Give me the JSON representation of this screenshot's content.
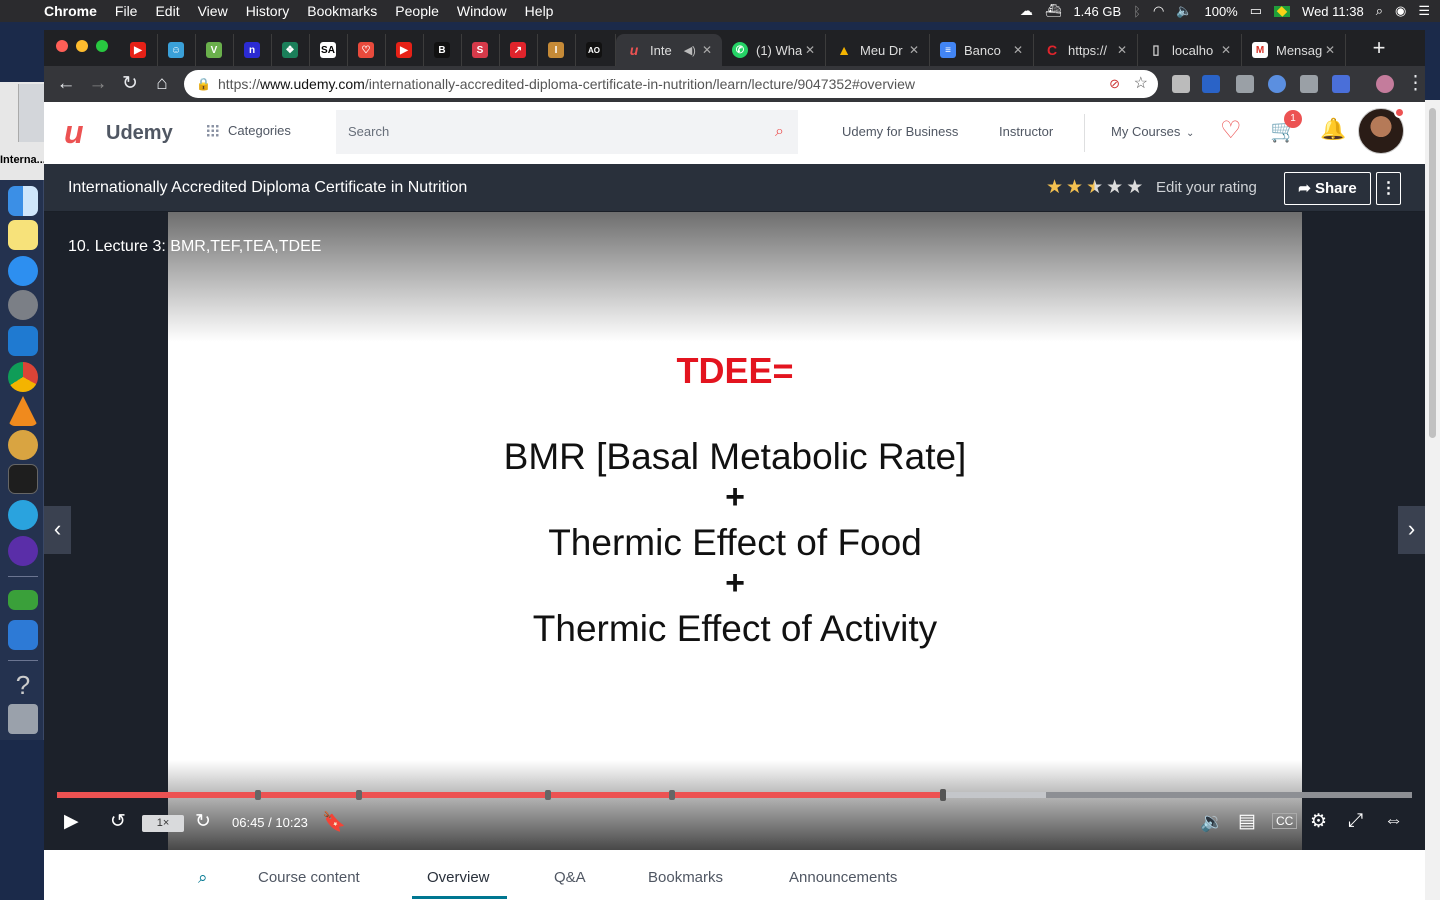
{
  "menubar": {
    "app": "Chrome",
    "items": [
      "File",
      "Edit",
      "View",
      "History",
      "Bookmarks",
      "People",
      "Window",
      "Help"
    ],
    "memory": "1.46 GB",
    "battery": "100%",
    "clock": "Wed 11:38"
  },
  "dock": {
    "window_label": "Interna... ccredit..."
  },
  "tabs": [
    {
      "label": "",
      "color": "#e62117",
      "glyph": "▶"
    },
    {
      "label": "",
      "color": "#3aa0d8",
      "glyph": "☺"
    },
    {
      "label": "",
      "color": "#6ab04c",
      "glyph": "V"
    },
    {
      "label": "",
      "color": "#2b2bd3",
      "glyph": "n"
    },
    {
      "label": "",
      "color": "#1b7f5a",
      "glyph": "❖"
    },
    {
      "label": "",
      "color": "#ffffff",
      "glyph": "SA"
    },
    {
      "label": "",
      "color": "#e84a3c",
      "glyph": "♡"
    },
    {
      "label": "",
      "color": "#e62117",
      "glyph": "▶"
    },
    {
      "label": "",
      "color": "#111111",
      "glyph": "B"
    },
    {
      "label": "",
      "color": "#d63a4a",
      "glyph": "S"
    },
    {
      "label": "",
      "color": "#e0242c",
      "glyph": "↗"
    },
    {
      "label": "",
      "color": "#c58a37",
      "glyph": "I"
    },
    {
      "label": "",
      "color": "#111111",
      "glyph": "AO"
    },
    {
      "label": "Inte",
      "color": "#ec5252",
      "glyph": "u"
    },
    {
      "label": "(1) Wha",
      "color": "#25d366",
      "glyph": "✆"
    },
    {
      "label": "Meu Dr",
      "color": "#f4b400",
      "glyph": "▲"
    },
    {
      "label": "Banco",
      "color": "#4285f4",
      "glyph": "≡"
    },
    {
      "label": "https://",
      "color": "#e0242c",
      "glyph": "C"
    },
    {
      "label": "localho",
      "color": "#888888",
      "glyph": "▭"
    },
    {
      "label": "Mensag",
      "color": "#d93025",
      "glyph": "M"
    }
  ],
  "omnibox": {
    "protocol": "https://",
    "host": "www.udemy.com",
    "path": "/internationally-accredited-diploma-certificate-in-nutrition/learn/lecture/9047352#overview"
  },
  "header": {
    "logo": "Udemy",
    "categories": "Categories",
    "search_placeholder": "Search",
    "business": "Udemy for Business",
    "instructor": "Instructor",
    "my_courses": "My Courses",
    "cart_count": "1"
  },
  "course": {
    "title": "Internationally Accredited Diploma Certificate in Nutrition",
    "rating": 2.5,
    "rating_label": "Edit your rating",
    "share": "Share"
  },
  "player": {
    "lecture_title": "10. Lecture 3: BMR,TEF,TEA,TDEE",
    "slide": {
      "heading": "TDEE=",
      "line1": "BMR [Basal Metabolic Rate]",
      "plus1": "+",
      "line2": "Thermic Effect of Food",
      "plus2": "+",
      "line3": "Thermic Effect of Activity"
    },
    "speed": "1×",
    "time": "06:45 / 10:23",
    "progress": 0.654,
    "buffered": 0.73,
    "bookmarks": [
      0.148,
      0.223,
      0.362,
      0.454
    ]
  },
  "lower_tabs": {
    "course_content": "Course content",
    "overview": "Overview",
    "qa": "Q&A",
    "bookmarks": "Bookmarks",
    "announcements": "Announcements"
  },
  "colors": {
    "accent": "#ec5252",
    "course_bar": "#29303b",
    "tab_underline": "#007791"
  }
}
